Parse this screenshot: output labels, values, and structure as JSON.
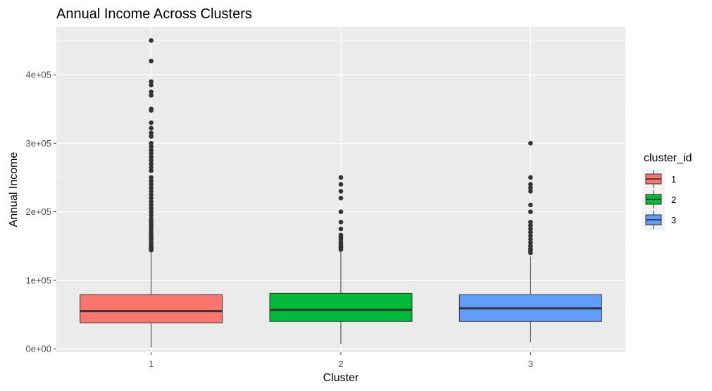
{
  "chart_data": {
    "type": "boxplot",
    "title": "Annual Income Across Clusters",
    "xlabel": "Cluster",
    "ylabel": "Annual Income",
    "categories": [
      "1",
      "2",
      "3"
    ],
    "ylim": [
      -5000,
      470000
    ],
    "y_ticks": [
      0,
      100000,
      200000,
      300000,
      400000
    ],
    "y_tick_labels": [
      "0e+00",
      "1e+05",
      "2e+05",
      "3e+05",
      "4e+05"
    ],
    "grid": true,
    "legend": {
      "title": "cluster_id",
      "position": "right",
      "entries": [
        "1",
        "2",
        "3"
      ]
    },
    "colors": [
      "#F8766D",
      "#00BA38",
      "#619CFF"
    ],
    "boxes": [
      {
        "cluster": "1",
        "whisker_low": 2000,
        "q1": 38000,
        "median": 55000,
        "q3": 79000,
        "whisker_high": 142000,
        "outliers": [
          144000,
          146000,
          148000,
          150000,
          153000,
          156000,
          160000,
          163000,
          166000,
          170000,
          174000,
          178000,
          182000,
          186000,
          190000,
          195000,
          200000,
          205000,
          210000,
          215000,
          220000,
          225000,
          230000,
          235000,
          240000,
          245000,
          250000,
          260000,
          265000,
          270000,
          275000,
          280000,
          285000,
          290000,
          295000,
          300000,
          310000,
          315000,
          322000,
          330000,
          348000,
          350000,
          370000,
          375000,
          385000,
          390000,
          420000,
          450000
        ]
      },
      {
        "cluster": "2",
        "whisker_low": 7000,
        "q1": 40000,
        "median": 57000,
        "q3": 81000,
        "whisker_high": 142000,
        "outliers": [
          145000,
          148000,
          150000,
          153000,
          156000,
          160000,
          163000,
          166000,
          175000,
          185000,
          200000,
          220000,
          230000,
          240000,
          250000
        ]
      },
      {
        "cluster": "3",
        "whisker_low": 10000,
        "q1": 40000,
        "median": 59000,
        "q3": 79000,
        "whisker_high": 135000,
        "outliers": [
          140000,
          143000,
          146000,
          150000,
          155000,
          160000,
          165000,
          170000,
          175000,
          180000,
          185000,
          200000,
          210000,
          230000,
          235000,
          240000,
          250000,
          300000
        ]
      }
    ]
  }
}
